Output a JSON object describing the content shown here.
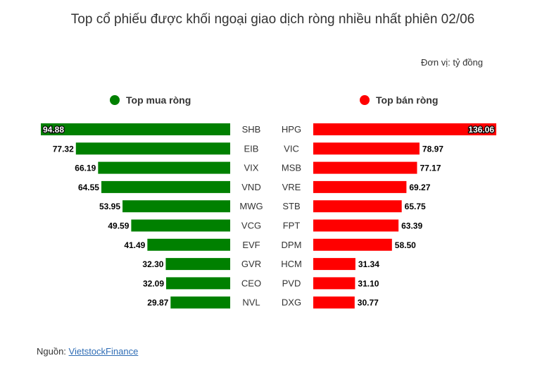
{
  "title": "Top cổ phiếu được khối ngoại giao dịch ròng nhiều nhất phiên 02/06",
  "unit": "Đơn vị: tỷ đồng",
  "source": {
    "prefix": "Nguồn: ",
    "link": "VietstockFinance"
  },
  "colors": {
    "buy": "#008000",
    "sell": "#ff0000"
  },
  "chart_data": [
    {
      "type": "bar",
      "title": "Top mua ròng",
      "orientation": "horizontal",
      "direction": "right-to-left",
      "categories": [
        "SHB",
        "EIB",
        "VIX",
        "VND",
        "MWG",
        "VCG",
        "EVF",
        "GVR",
        "CEO",
        "NVL"
      ],
      "values": [
        94.88,
        77.32,
        66.19,
        64.55,
        53.95,
        49.59,
        41.49,
        32.3,
        32.09,
        29.87
      ],
      "labels": [
        "94.88",
        "77.32",
        "66.19",
        "64.55",
        "53.95",
        "49.59",
        "41.49",
        "32.30",
        "32.09",
        "29.87"
      ],
      "color": "#008000",
      "xlim": [
        0,
        94.88
      ]
    },
    {
      "type": "bar",
      "title": "Top bán ròng",
      "orientation": "horizontal",
      "direction": "left-to-right",
      "categories": [
        "HPG",
        "VIC",
        "MSB",
        "VRE",
        "STB",
        "FPT",
        "DPM",
        "HCM",
        "PVD",
        "DXG"
      ],
      "values": [
        136.06,
        78.97,
        77.17,
        69.27,
        65.75,
        63.39,
        58.5,
        31.34,
        31.1,
        30.77
      ],
      "labels": [
        "136.06",
        "78.97",
        "77.17",
        "69.27",
        "65.75",
        "63.39",
        "58.50",
        "31.34",
        "31.10",
        "30.77"
      ],
      "color": "#ff0000",
      "xlim": [
        0,
        136.06
      ]
    }
  ]
}
